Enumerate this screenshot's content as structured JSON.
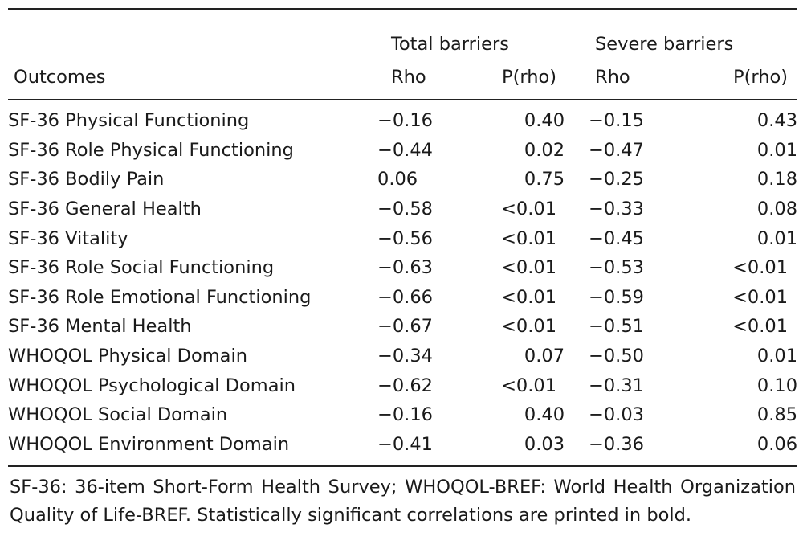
{
  "table": {
    "group_headers": {
      "total": "Total barriers",
      "severe": "Severe barriers"
    },
    "columns": {
      "outcome": "Outcomes",
      "rho_total": "Rho",
      "p_total": "P(rho)",
      "rho_severe": "Rho",
      "p_severe": "P(rho)"
    },
    "rows": [
      {
        "outcome": "SF-36 Physical Functioning",
        "rho_total": "−0.16",
        "p_total": "0.40",
        "rho_severe": "−0.15",
        "p_severe": "0.43",
        "bold_total": false,
        "bold_severe": false
      },
      {
        "outcome": "SF-36 Role Physical Functioning",
        "rho_total": "−0.44",
        "p_total": "0.02",
        "rho_severe": "−0.47",
        "p_severe": "0.01",
        "bold_total": true,
        "bold_severe": true
      },
      {
        "outcome": "SF-36 Bodily Pain",
        "rho_total": "0.06",
        "p_total": "0.75",
        "rho_severe": "−0.25",
        "p_severe": "0.18",
        "bold_total": false,
        "bold_severe": false
      },
      {
        "outcome": "SF-36 General Health",
        "rho_total": "−0.58",
        "p_total": "<0.01",
        "rho_severe": "−0.33",
        "p_severe": "0.08",
        "bold_total": true,
        "bold_severe": false
      },
      {
        "outcome": "SF-36 Vitality",
        "rho_total": "−0.56",
        "p_total": "<0.01",
        "rho_severe": "−0.45",
        "p_severe": "0.01",
        "bold_total": true,
        "bold_severe": true
      },
      {
        "outcome": "SF-36 Role Social Functioning",
        "rho_total": "−0.63",
        "p_total": "<0.01",
        "rho_severe": "−0.53",
        "p_severe": "<0.01",
        "bold_total": true,
        "bold_severe": true
      },
      {
        "outcome": "SF-36 Role Emotional Functioning",
        "rho_total": "−0.66",
        "p_total": "<0.01",
        "rho_severe": "−0.59",
        "p_severe": "<0.01",
        "bold_total": true,
        "bold_severe": true
      },
      {
        "outcome": "SF-36 Mental Health",
        "rho_total": "−0.67",
        "p_total": "<0.01",
        "rho_severe": "−0.51",
        "p_severe": "<0.01",
        "bold_total": true,
        "bold_severe": true
      },
      {
        "outcome": "WHOQOL Physical Domain",
        "rho_total": "−0.34",
        "p_total": "0.07",
        "rho_severe": "−0.50",
        "p_severe": "0.01",
        "bold_total": false,
        "bold_severe": true
      },
      {
        "outcome": "WHOQOL Psychological Domain",
        "rho_total": "−0.62",
        "p_total": "<0.01",
        "rho_severe": "−0.31",
        "p_severe": "0.10",
        "bold_total": true,
        "bold_severe": false
      },
      {
        "outcome": "WHOQOL Social Domain",
        "rho_total": "−0.16",
        "p_total": "0.40",
        "rho_severe": "−0.03",
        "p_severe": "0.85",
        "bold_total": false,
        "bold_severe": false
      },
      {
        "outcome": "WHOQOL Environment Domain",
        "rho_total": "−0.41",
        "p_total": "0.03",
        "rho_severe": "−0.36",
        "p_severe": "0.06",
        "bold_total": true,
        "bold_severe": false
      }
    ]
  },
  "footnote": "SF-36: 36-item Short-Form Health Survey; WHOQOL-BREF: World Health Organization Quality of Life-BREF. Statistically significant correlations are printed in bold."
}
